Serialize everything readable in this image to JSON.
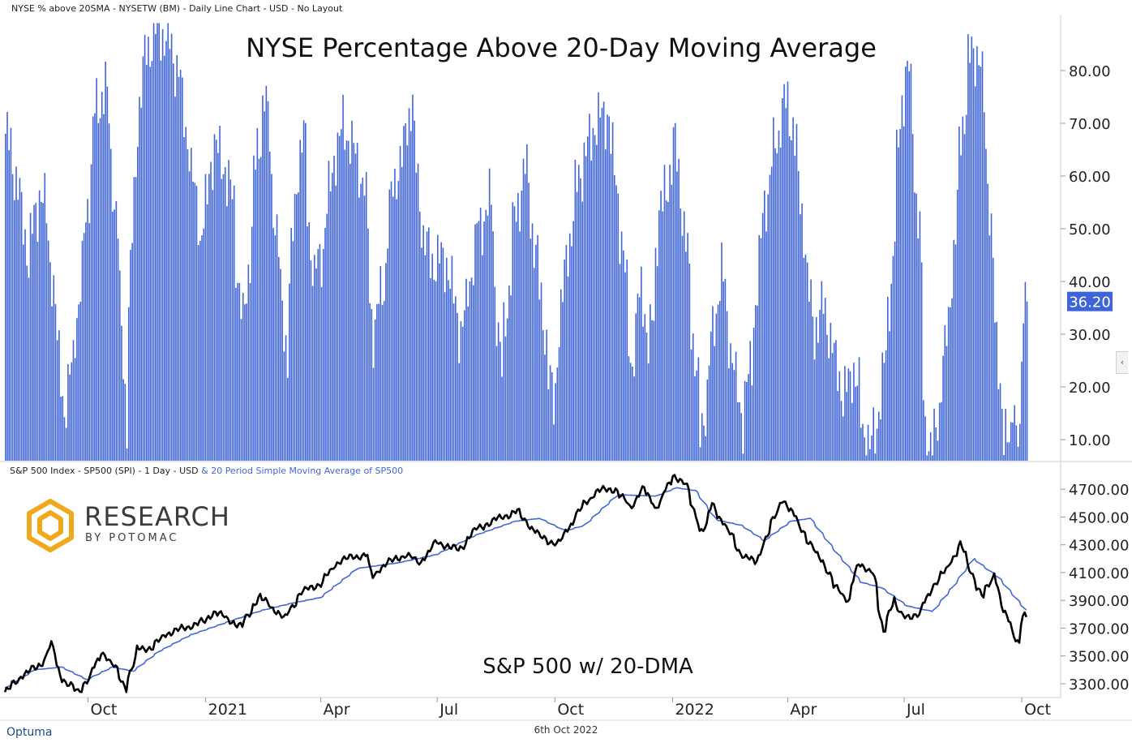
{
  "top_header": "NYSE % above 20SMA - NYSETW (BM) - Daily Line Chart - USD - No Layout",
  "bottom_header": {
    "main": "S&P 500 Index  - SP500 (SPI) - 1 Day - USD",
    "sma": "& 20 Period Simple Moving Average of SP500"
  },
  "footer": {
    "brand": "Optuma",
    "date": "6th Oct 2022"
  },
  "logo": {
    "line1": "RESEARCH",
    "line2": "BY POTOMAC"
  },
  "colors": {
    "bars": "#3f64d8",
    "price_line": "#000000",
    "sma_line": "#4466d8",
    "last_value_bg": "#3f64d8",
    "logo_gold": "#f0a81c",
    "logo_text": "#3c3c3c"
  },
  "chart_data": [
    {
      "type": "bar",
      "title": "NYSE Percentage Above 20-Day Moving Average",
      "ylim": [
        6,
        90
      ],
      "yticks": [
        "80.00",
        "70.00",
        "60.00",
        "50.00",
        "40.00",
        "30.00",
        "20.00",
        "10.00"
      ],
      "last_value": "36.20",
      "x_start": "2020-07-28",
      "x_end": "2022-10-06",
      "x_tick_labels": [
        "Oct",
        "2021",
        "Apr",
        "Jul",
        "Oct",
        "2022",
        "Apr",
        "Jul",
        "Oct"
      ],
      "keypoints": [
        [
          "2020-07-28",
          68
        ],
        [
          "2020-08-05",
          60
        ],
        [
          "2020-08-14",
          45
        ],
        [
          "2020-08-25",
          58
        ],
        [
          "2020-09-02",
          42
        ],
        [
          "2020-09-12",
          13
        ],
        [
          "2020-09-24",
          38
        ],
        [
          "2020-10-06",
          72
        ],
        [
          "2020-10-14",
          77
        ],
        [
          "2020-10-24",
          47
        ],
        [
          "2020-10-30",
          14
        ],
        [
          "2020-11-06",
          62
        ],
        [
          "2020-11-13",
          82
        ],
        [
          "2020-11-23",
          88
        ],
        [
          "2020-12-02",
          86
        ],
        [
          "2020-12-10",
          80
        ],
        [
          "2020-12-20",
          62
        ],
        [
          "2020-12-28",
          48
        ],
        [
          "2021-01-07",
          66
        ],
        [
          "2021-01-15",
          62
        ],
        [
          "2021-01-22",
          55
        ],
        [
          "2021-01-30",
          28
        ],
        [
          "2021-02-08",
          60
        ],
        [
          "2021-02-16",
          76
        ],
        [
          "2021-02-26",
          46
        ],
        [
          "2021-03-05",
          26
        ],
        [
          "2021-03-12",
          58
        ],
        [
          "2021-03-18",
          68
        ],
        [
          "2021-03-26",
          40
        ],
        [
          "2021-04-02",
          46
        ],
        [
          "2021-04-10",
          62
        ],
        [
          "2021-04-18",
          70
        ],
        [
          "2021-04-28",
          64
        ],
        [
          "2021-05-05",
          58
        ],
        [
          "2021-05-12",
          30
        ],
        [
          "2021-05-20",
          40
        ],
        [
          "2021-05-27",
          58
        ],
        [
          "2021-06-04",
          64
        ],
        [
          "2021-06-11",
          75
        ],
        [
          "2021-06-18",
          52
        ],
        [
          "2021-06-25",
          44
        ],
        [
          "2021-07-08",
          44
        ],
        [
          "2021-07-20",
          30
        ],
        [
          "2021-08-02",
          50
        ],
        [
          "2021-08-12",
          55
        ],
        [
          "2021-08-20",
          22
        ],
        [
          "2021-08-30",
          50
        ],
        [
          "2021-09-08",
          62
        ],
        [
          "2021-09-18",
          42
        ],
        [
          "2021-09-30",
          16
        ],
        [
          "2021-10-08",
          40
        ],
        [
          "2021-10-20",
          60
        ],
        [
          "2021-11-02",
          70
        ],
        [
          "2021-11-12",
          72
        ],
        [
          "2021-11-22",
          50
        ],
        [
          "2021-12-01",
          24
        ],
        [
          "2021-12-08",
          40
        ],
        [
          "2021-12-14",
          26
        ],
        [
          "2021-12-22",
          52
        ],
        [
          "2022-01-04",
          66
        ],
        [
          "2022-01-14",
          42
        ],
        [
          "2022-01-24",
          10
        ],
        [
          "2022-02-02",
          30
        ],
        [
          "2022-02-09",
          42
        ],
        [
          "2022-02-18",
          24
        ],
        [
          "2022-02-25",
          14
        ],
        [
          "2022-03-05",
          26
        ],
        [
          "2022-03-12",
          50
        ],
        [
          "2022-03-20",
          62
        ],
        [
          "2022-03-30",
          74
        ],
        [
          "2022-04-06",
          70
        ],
        [
          "2022-04-14",
          50
        ],
        [
          "2022-04-22",
          30
        ],
        [
          "2022-04-30",
          36
        ],
        [
          "2022-05-08",
          26
        ],
        [
          "2022-05-16",
          18
        ],
        [
          "2022-05-24",
          24
        ],
        [
          "2022-05-31",
          12
        ],
        [
          "2022-06-06",
          8
        ],
        [
          "2022-06-14",
          18
        ],
        [
          "2022-06-22",
          40
        ],
        [
          "2022-06-30",
          75
        ],
        [
          "2022-07-06",
          80
        ],
        [
          "2022-07-14",
          48
        ],
        [
          "2022-07-19",
          12
        ],
        [
          "2022-07-24",
          6
        ],
        [
          "2022-07-31",
          20
        ],
        [
          "2022-08-08",
          38
        ],
        [
          "2022-08-15",
          65
        ],
        [
          "2022-08-22",
          82
        ],
        [
          "2022-08-30",
          84
        ],
        [
          "2022-09-06",
          60
        ],
        [
          "2022-09-12",
          30
        ],
        [
          "2022-09-18",
          12
        ],
        [
          "2022-09-22",
          8
        ],
        [
          "2022-09-26",
          20
        ],
        [
          "2022-09-30",
          6
        ],
        [
          "2022-10-03",
          26
        ],
        [
          "2022-10-05",
          40
        ],
        [
          "2022-10-06",
          36.2
        ]
      ]
    },
    {
      "type": "line",
      "title": "S&P 500 w/ 20-DMA",
      "ylim": [
        3230,
        4800
      ],
      "yticks": [
        "4700.00",
        "4500.00",
        "4300.00",
        "4100.00",
        "3900.00",
        "3700.00",
        "3500.00",
        "3300.00"
      ],
      "series": [
        {
          "name": "S&P 500 Index  - SP500 (SPI) - 1 Day - USD",
          "keypoints": [
            [
              "2020-07-28",
              3240
            ],
            [
              "2020-08-10",
              3360
            ],
            [
              "2020-08-25",
              3440
            ],
            [
              "2020-09-02",
              3580
            ],
            [
              "2020-09-10",
              3340
            ],
            [
              "2020-09-23",
              3240
            ],
            [
              "2020-10-02",
              3350
            ],
            [
              "2020-10-12",
              3530
            ],
            [
              "2020-10-21",
              3430
            ],
            [
              "2020-10-30",
              3270
            ],
            [
              "2020-11-09",
              3550
            ],
            [
              "2020-11-20",
              3560
            ],
            [
              "2020-12-01",
              3660
            ],
            [
              "2020-12-15",
              3700
            ],
            [
              "2020-12-31",
              3750
            ],
            [
              "2021-01-08",
              3820
            ],
            [
              "2021-01-29",
              3710
            ],
            [
              "2021-02-12",
              3930
            ],
            [
              "2021-03-04",
              3770
            ],
            [
              "2021-03-17",
              3960
            ],
            [
              "2021-04-01",
              4020
            ],
            [
              "2021-04-16",
              4190
            ],
            [
              "2021-05-07",
              4230
            ],
            [
              "2021-05-12",
              4070
            ],
            [
              "2021-05-21",
              4160
            ],
            [
              "2021-06-07",
              4230
            ],
            [
              "2021-06-18",
              4170
            ],
            [
              "2021-07-01",
              4320
            ],
            [
              "2021-07-19",
              4260
            ],
            [
              "2021-07-30",
              4400
            ],
            [
              "2021-08-16",
              4480
            ],
            [
              "2021-09-02",
              4540
            ],
            [
              "2021-09-20",
              4360
            ],
            [
              "2021-10-04",
              4300
            ],
            [
              "2021-10-21",
              4550
            ],
            [
              "2021-11-04",
              4690
            ],
            [
              "2021-11-18",
              4700
            ],
            [
              "2021-11-30",
              4570
            ],
            [
              "2021-12-10",
              4710
            ],
            [
              "2021-12-20",
              4560
            ],
            [
              "2022-01-03",
              4800
            ],
            [
              "2022-01-12",
              4740
            ],
            [
              "2022-01-24",
              4400
            ],
            [
              "2022-01-28",
              4430
            ],
            [
              "2022-02-02",
              4590
            ],
            [
              "2022-02-18",
              4350
            ],
            [
              "2022-02-24",
              4240
            ],
            [
              "2022-03-08",
              4170
            ],
            [
              "2022-03-29",
              4630
            ],
            [
              "2022-04-08",
              4500
            ],
            [
              "2022-04-22",
              4270
            ],
            [
              "2022-05-02",
              4150
            ],
            [
              "2022-05-09",
              4000
            ],
            [
              "2022-05-20",
              3900
            ],
            [
              "2022-05-27",
              4160
            ],
            [
              "2022-06-08",
              4110
            ],
            [
              "2022-06-16",
              3670
            ],
            [
              "2022-06-24",
              3910
            ],
            [
              "2022-06-30",
              3790
            ],
            [
              "2022-07-14",
              3790
            ],
            [
              "2022-07-22",
              3960
            ],
            [
              "2022-08-02",
              4090
            ],
            [
              "2022-08-16",
              4300
            ],
            [
              "2022-08-26",
              4060
            ],
            [
              "2022-09-02",
              3920
            ],
            [
              "2022-09-12",
              4110
            ],
            [
              "2022-09-16",
              3870
            ],
            [
              "2022-09-22",
              3760
            ],
            [
              "2022-09-30",
              3590
            ],
            [
              "2022-10-04",
              3790
            ],
            [
              "2022-10-06",
              3780
            ]
          ]
        },
        {
          "name": "20 Period Simple Moving Average of SP500",
          "keypoints": [
            [
              "2020-07-28",
              3270
            ],
            [
              "2020-08-20",
              3400
            ],
            [
              "2020-09-10",
              3420
            ],
            [
              "2020-09-30",
              3330
            ],
            [
              "2020-10-20",
              3420
            ],
            [
              "2020-11-05",
              3390
            ],
            [
              "2020-11-25",
              3530
            ],
            [
              "2020-12-20",
              3650
            ],
            [
              "2021-01-20",
              3750
            ],
            [
              "2021-02-15",
              3830
            ],
            [
              "2021-03-10",
              3880
            ],
            [
              "2021-04-01",
              3920
            ],
            [
              "2021-04-30",
              4130
            ],
            [
              "2021-06-01",
              4170
            ],
            [
              "2021-07-01",
              4230
            ],
            [
              "2021-08-01",
              4370
            ],
            [
              "2021-09-01",
              4470
            ],
            [
              "2021-09-20",
              4490
            ],
            [
              "2021-10-10",
              4400
            ],
            [
              "2021-10-25",
              4440
            ],
            [
              "2021-11-20",
              4660
            ],
            [
              "2021-12-20",
              4650
            ],
            [
              "2022-01-05",
              4710
            ],
            [
              "2022-01-20",
              4690
            ],
            [
              "2022-02-05",
              4480
            ],
            [
              "2022-02-25",
              4440
            ],
            [
              "2022-03-15",
              4330
            ],
            [
              "2022-04-05",
              4470
            ],
            [
              "2022-04-20",
              4490
            ],
            [
              "2022-05-10",
              4250
            ],
            [
              "2022-05-30",
              4030
            ],
            [
              "2022-06-15",
              3990
            ],
            [
              "2022-07-05",
              3860
            ],
            [
              "2022-07-25",
              3820
            ],
            [
              "2022-08-10",
              4000
            ],
            [
              "2022-08-26",
              4200
            ],
            [
              "2022-09-15",
              4060
            ],
            [
              "2022-10-06",
              3830
            ]
          ]
        }
      ]
    }
  ]
}
